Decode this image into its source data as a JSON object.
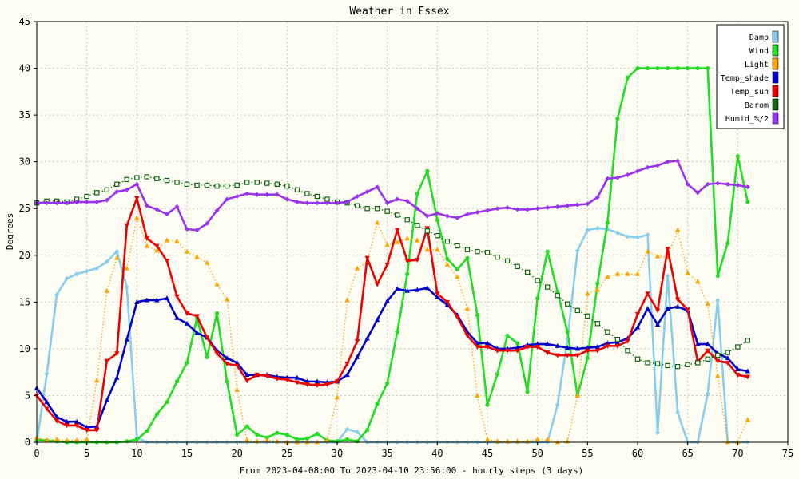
{
  "chart_data": {
    "type": "line",
    "title": "Weather in Essex",
    "xlabel": "From 2023-04-08:00 To 2023-04-10 23:56:00 - hourly steps (3 days)",
    "ylabel": "Degrees",
    "xlim": [
      0,
      75
    ],
    "ylim": [
      0,
      45
    ],
    "xticks": [
      0,
      5,
      10,
      15,
      20,
      25,
      30,
      35,
      40,
      45,
      50,
      55,
      60,
      65,
      70,
      75
    ],
    "yticks": [
      0,
      5,
      10,
      15,
      20,
      25,
      30,
      35,
      40,
      45
    ],
    "grid": true,
    "legend_position": "top-right",
    "series": [
      {
        "name": "Damp",
        "color": "#87ceeb",
        "style": "solid",
        "marker": "diamond",
        "values": [
          0,
          7.3,
          15.8,
          17.5,
          18,
          18.3,
          18.6,
          19.3,
          20.4,
          16.6,
          0.5,
          0,
          0,
          0,
          0,
          0,
          0,
          0,
          0,
          0,
          0,
          0,
          0,
          0,
          0,
          0,
          0,
          0,
          0,
          0,
          0,
          1.4,
          1.1,
          0,
          0,
          0,
          0,
          0,
          0,
          0,
          0,
          0,
          0,
          0,
          0,
          0,
          0,
          0,
          0,
          0,
          0,
          0,
          4,
          11,
          20.5,
          22.7,
          22.9,
          22.8,
          22.4,
          22,
          21.9,
          22.2,
          1,
          17.8,
          3.2,
          0,
          0,
          5.2,
          15.2,
          0,
          0,
          0
        ]
      },
      {
        "name": "Wind",
        "color": "#22dd22",
        "style": "solid",
        "marker": "circle",
        "values": [
          0.3,
          0.2,
          0.1,
          0,
          0,
          0,
          0,
          0,
          0,
          0.1,
          0.3,
          1.2,
          3,
          4.3,
          6.5,
          8.5,
          13.3,
          9.1,
          13.8,
          6.5,
          0.8,
          1.7,
          0.8,
          0.5,
          1,
          0.8,
          0.3,
          0.4,
          0.9,
          0.2,
          0.1,
          0.3,
          0.1,
          1.3,
          4.1,
          6.3,
          11.8,
          18,
          26.6,
          29,
          23.8,
          19.6,
          18.5,
          19.7,
          13.6,
          4,
          7.3,
          11.4,
          10.6,
          5.4,
          15.4,
          20.4,
          16.1,
          11.8,
          5,
          9,
          17,
          23.5,
          34.6,
          39,
          40,
          40,
          40,
          40,
          40,
          40,
          40,
          40,
          17.8,
          21.3,
          30.6,
          25.7
        ]
      },
      {
        "name": "Light",
        "color": "#ffa500",
        "style": "dotted",
        "marker": "triangle",
        "values": [
          0.5,
          0.2,
          0.3,
          0.2,
          0.2,
          0.3,
          6.6,
          16.2,
          19.7,
          18.6,
          24,
          21,
          20.5,
          21.6,
          21.5,
          20.4,
          19.8,
          19.2,
          16.9,
          15.3,
          5.6,
          0.2,
          0.1,
          0.2,
          0.1,
          0,
          0,
          0,
          0,
          0.2,
          4.8,
          15.2,
          18.6,
          19.3,
          23.5,
          21.1,
          21.4,
          21.8,
          21.6,
          20.6,
          20.6,
          19,
          17.7,
          14.3,
          5,
          0.3,
          0.1,
          0.1,
          0.1,
          0.1,
          0.3,
          0.3,
          0,
          0.1,
          5,
          15.9,
          16.3,
          17.7,
          18,
          18,
          18,
          20.4,
          19.9,
          19.8,
          22.7,
          18.1,
          17.2,
          14.8,
          7.1,
          0,
          0,
          2.4
        ]
      },
      {
        "name": "Temp_shade",
        "color": "#0000cc",
        "style": "solid",
        "marker": "triangle",
        "values": [
          5.8,
          4.3,
          2.7,
          2.2,
          2.2,
          1.6,
          1.7,
          4.5,
          6.9,
          11,
          15,
          15.2,
          15.2,
          15.4,
          13.3,
          12.7,
          11.7,
          11.2,
          9.8,
          9,
          8.5,
          7.2,
          7.2,
          7.2,
          7,
          6.9,
          6.9,
          6.5,
          6.5,
          6.4,
          6.5,
          7.2,
          9.1,
          11.1,
          13.1,
          15.1,
          16.4,
          16.2,
          16.3,
          16.5,
          15.5,
          14.7,
          13.6,
          11.8,
          10.6,
          10.6,
          10,
          10,
          10.1,
          10.4,
          10.5,
          10.5,
          10.3,
          10.1,
          10,
          10.1,
          10.2,
          10.6,
          10.7,
          11.1,
          12.3,
          14.3,
          12.6,
          14.3,
          14.5,
          14.1,
          10.5,
          10.5,
          9.5,
          9,
          7.8,
          7.6
        ]
      },
      {
        "name": "Temp_sun",
        "color": "#ee0000",
        "style": "solid",
        "marker": "triangle-down",
        "values": [
          5,
          3.6,
          2.3,
          1.8,
          1.8,
          1.3,
          1.3,
          8.7,
          9.5,
          23.2,
          26.1,
          21.8,
          21,
          19.4,
          15.6,
          13.8,
          13.5,
          11.2,
          9.5,
          8.4,
          8.2,
          6.6,
          7.2,
          7.1,
          6.8,
          6.7,
          6.4,
          6.2,
          6.1,
          6.2,
          6.5,
          8.4,
          10.8,
          19.7,
          16.9,
          19,
          22.7,
          19.4,
          19.5,
          22.9,
          15.9,
          15,
          13.4,
          11.4,
          10.2,
          10.2,
          9.8,
          9.8,
          9.8,
          10.2,
          10.2,
          9.6,
          9.3,
          9.3,
          9.3,
          9.8,
          9.8,
          10.3,
          10.3,
          10.8,
          13.7,
          15.9,
          14.1,
          20.7,
          15.3,
          14.2,
          8.6,
          9.8,
          8.7,
          8.5,
          7.2,
          7
        ]
      },
      {
        "name": "Barom",
        "color": "#116611",
        "style": "dotted",
        "marker": "square",
        "values": [
          25.6,
          25.8,
          25.8,
          25.7,
          26,
          26.3,
          26.7,
          27,
          27.6,
          28.1,
          28.3,
          28.4,
          28.2,
          28,
          27.8,
          27.6,
          27.5,
          27.5,
          27.4,
          27.4,
          27.5,
          27.8,
          27.8,
          27.7,
          27.6,
          27.4,
          27,
          26.6,
          26.3,
          26,
          25.7,
          25.6,
          25.3,
          25,
          25,
          24.7,
          24.3,
          23.8,
          23.2,
          22.6,
          22.1,
          21.5,
          21,
          20.6,
          20.4,
          20.3,
          19.8,
          19.4,
          18.8,
          18.2,
          17.3,
          16.6,
          15.7,
          14.8,
          14.1,
          13.5,
          12.7,
          11.8,
          11,
          9.8,
          8.9,
          8.5,
          8.4,
          8.2,
          8.1,
          8.3,
          8.5,
          8.9,
          9.3,
          9.6,
          10.2,
          10.9
        ]
      },
      {
        "name": "Humid_%/2",
        "color": "#9933ee",
        "style": "solid",
        "marker": "diamond",
        "values": [
          25.6,
          25.6,
          25.6,
          25.6,
          25.7,
          25.7,
          25.7,
          25.9,
          26.8,
          27,
          27.6,
          25.3,
          24.9,
          24.4,
          25.2,
          22.8,
          22.7,
          23.4,
          24.8,
          26,
          26.3,
          26.6,
          26.5,
          26.5,
          26.5,
          26,
          25.7,
          25.6,
          25.6,
          25.6,
          25.6,
          25.7,
          26.3,
          26.8,
          27.3,
          25.6,
          26,
          25.8,
          25,
          24.2,
          24.5,
          24.2,
          24,
          24.4,
          24.6,
          24.8,
          25,
          25.1,
          24.9,
          24.9,
          25,
          25.1,
          25.2,
          25.3,
          25.4,
          25.5,
          26.2,
          28.2,
          28.3,
          28.6,
          29,
          29.4,
          29.6,
          30,
          30.1,
          27.6,
          26.7,
          27.6,
          27.7,
          27.6,
          27.5,
          27.3
        ]
      }
    ]
  }
}
